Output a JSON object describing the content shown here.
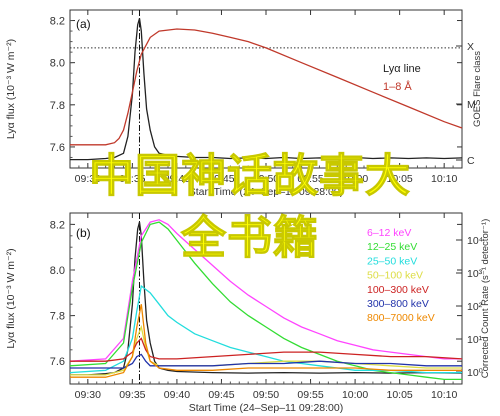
{
  "overlay_text": {
    "line1": "中国神话故事大",
    "line2": "全书籍"
  },
  "colors": {
    "overlay": "#ffff00",
    "flux": "#222222",
    "goes": "#c0392b",
    "axis": "#333333"
  },
  "chart_data": [
    {
      "type": "line",
      "panel_label": "(a)",
      "ylabel": "Lyα flux (10⁻³ W m⁻²)",
      "ylim": [
        7.5,
        8.25
      ],
      "yticks": [
        "7.6",
        "7.8",
        "8.0",
        "8.2"
      ],
      "xlabel": "Start Time (24–Sep–11 09:28:00)",
      "xticks": [
        "09:30",
        "09:35",
        "09:40",
        "09:45",
        "09:50",
        "09:55",
        "10:00",
        "10:05",
        "10:10"
      ],
      "x_domain_min": [
        28.0,
        72.0
      ],
      "right_axis_label": "GOES Flare class",
      "right_ticks": [
        "X",
        "M",
        "C"
      ],
      "reference_line": {
        "style": "dotted",
        "value": 8.07
      },
      "peak_marker_min": 35.8,
      "legend": {
        "position": "top-right",
        "entries": [
          "Lyα line",
          "1–8 Å"
        ]
      },
      "series": [
        {
          "name": "Lyα line",
          "color": "#222222",
          "x": [
            28,
            30,
            32,
            33,
            34,
            34.5,
            35,
            35.3,
            35.6,
            35.8,
            36.0,
            36.3,
            36.6,
            37.0,
            37.5,
            38,
            39,
            40,
            42,
            44,
            46,
            48,
            50,
            52,
            54,
            56,
            58,
            60,
            62,
            64,
            66,
            68,
            70,
            72
          ],
          "y": [
            7.54,
            7.54,
            7.545,
            7.55,
            7.57,
            7.65,
            7.85,
            8.05,
            8.18,
            8.21,
            8.15,
            7.95,
            7.78,
            7.68,
            7.6,
            7.57,
            7.56,
            7.555,
            7.55,
            7.55,
            7.545,
            7.548,
            7.545,
            7.55,
            7.545,
            7.548,
            7.545,
            7.55,
            7.545,
            7.548,
            7.545,
            7.548,
            7.545,
            7.548
          ]
        },
        {
          "name": "1–8 Å",
          "color": "#c0392b",
          "x": [
            28,
            30,
            32,
            33,
            33.5,
            34,
            34.5,
            35,
            35.5,
            36,
            37,
            38,
            40,
            42,
            44,
            46,
            48,
            50,
            54,
            58,
            62,
            66,
            70,
            72
          ],
          "y": [
            7.61,
            7.61,
            7.61,
            7.62,
            7.64,
            7.68,
            7.76,
            7.86,
            7.96,
            8.04,
            8.12,
            8.15,
            8.16,
            8.155,
            8.14,
            8.12,
            8.1,
            8.07,
            8.0,
            7.93,
            7.86,
            7.79,
            7.72,
            7.69
          ]
        }
      ]
    },
    {
      "type": "line",
      "panel_label": "(b)",
      "ylabel": "Lyα flux (10⁻³ W m⁻²)",
      "ylim": [
        7.5,
        8.25
      ],
      "yticks": [
        "7.6",
        "7.8",
        "8.0",
        "8.2"
      ],
      "xlabel": "Start Time (24–Sep–11 09:28:00)",
      "xticks": [
        "09:30",
        "09:35",
        "09:40",
        "09:45",
        "09:50",
        "09:55",
        "10:00",
        "10:05",
        "10:10"
      ],
      "x_domain_min": [
        28.0,
        72.0
      ],
      "right_axis_label": "Corrected Count Rate (s⁻¹ detector⁻¹)",
      "right_ticks": [
        "10⁴",
        "10³",
        "10²",
        "10¹",
        "10⁰"
      ],
      "peak_marker_min": 35.8,
      "legend": {
        "position": "top-right",
        "entries": [
          "6–12 keV",
          "12–25 keV",
          "25–50 keV",
          "50–100 keV",
          "100–300 keV",
          "300–800 keV",
          "800–7000 keV"
        ]
      },
      "series": [
        {
          "name": "Lyα flux",
          "color": "#222222",
          "x": [
            28,
            30,
            32,
            33,
            34,
            34.5,
            35,
            35.3,
            35.6,
            35.8,
            36.0,
            36.3,
            36.6,
            37.0,
            37.5,
            38,
            39,
            40,
            44,
            48,
            52,
            56,
            60,
            64,
            68,
            72
          ],
          "y": [
            7.54,
            7.54,
            7.545,
            7.55,
            7.57,
            7.65,
            7.85,
            8.05,
            8.18,
            8.21,
            8.15,
            7.95,
            7.78,
            7.68,
            7.6,
            7.57,
            7.56,
            7.555,
            7.55,
            7.548,
            7.55,
            7.548,
            7.55,
            7.548,
            7.55,
            7.548
          ]
        },
        {
          "name": "6–12 keV",
          "color": "#ff44ff",
          "x": [
            28,
            32,
            34,
            35,
            36,
            37,
            38,
            39,
            40,
            42,
            44,
            46,
            48,
            50,
            52,
            54,
            56,
            58,
            60,
            62,
            64,
            66,
            68,
            70,
            72
          ],
          "y": [
            7.6,
            7.61,
            7.7,
            7.95,
            8.15,
            8.21,
            8.22,
            8.2,
            8.16,
            8.09,
            8.02,
            7.95,
            7.89,
            7.84,
            7.79,
            7.75,
            7.72,
            7.69,
            7.67,
            7.65,
            7.64,
            7.63,
            7.62,
            7.61,
            7.61
          ]
        },
        {
          "name": "12–25 keV",
          "color": "#33dd33",
          "x": [
            28,
            32,
            34,
            35,
            36,
            37,
            38,
            39,
            40,
            42,
            44,
            46,
            48,
            50,
            52,
            54,
            56,
            58,
            60,
            62,
            64,
            66,
            68,
            70,
            72
          ],
          "y": [
            7.58,
            7.59,
            7.68,
            7.92,
            8.12,
            8.2,
            8.21,
            8.18,
            8.13,
            8.03,
            7.94,
            7.86,
            7.8,
            7.75,
            7.7,
            7.66,
            7.63,
            7.6,
            7.58,
            7.56,
            7.55,
            7.54,
            7.53,
            7.52,
            7.52
          ]
        },
        {
          "name": "25–50 keV",
          "color": "#22dddd",
          "x": [
            28,
            32,
            34,
            35,
            35.5,
            36,
            37,
            38,
            39,
            40,
            42,
            44,
            46,
            48,
            50,
            52,
            54,
            56,
            58,
            60,
            64,
            68,
            72
          ],
          "y": [
            7.55,
            7.56,
            7.6,
            7.7,
            7.82,
            7.93,
            7.9,
            7.85,
            7.8,
            7.77,
            7.72,
            7.69,
            7.66,
            7.64,
            7.62,
            7.6,
            7.59,
            7.58,
            7.57,
            7.56,
            7.56,
            7.55,
            7.55
          ]
        },
        {
          "name": "50–100 keV",
          "color": "#dddd44",
          "x": [
            28,
            32,
            34,
            35,
            35.5,
            36,
            36.5,
            37,
            38,
            40,
            44,
            48,
            52,
            56,
            60,
            64,
            68,
            72
          ],
          "y": [
            7.54,
            7.54,
            7.56,
            7.62,
            7.7,
            7.75,
            7.66,
            7.6,
            7.58,
            7.58,
            7.58,
            7.59,
            7.6,
            7.6,
            7.59,
            7.58,
            7.57,
            7.57
          ]
        },
        {
          "name": "100–300 keV",
          "color": "#cc2222",
          "x": [
            28,
            32,
            34,
            35,
            35.5,
            36,
            36.5,
            37,
            38,
            40,
            44,
            48,
            52,
            56,
            60,
            64,
            68,
            72
          ],
          "y": [
            7.6,
            7.6,
            7.61,
            7.64,
            7.68,
            7.7,
            7.65,
            7.62,
            7.61,
            7.61,
            7.62,
            7.63,
            7.64,
            7.64,
            7.63,
            7.62,
            7.62,
            7.61
          ]
        },
        {
          "name": "300–800 keV",
          "color": "#2233aa",
          "x": [
            28,
            32,
            34,
            35,
            35.5,
            36,
            36.5,
            37,
            38,
            40,
            44,
            48,
            52,
            56,
            60,
            64,
            68,
            72
          ],
          "y": [
            7.57,
            7.57,
            7.57,
            7.59,
            7.62,
            7.63,
            7.6,
            7.58,
            7.58,
            7.58,
            7.58,
            7.59,
            7.59,
            7.6,
            7.59,
            7.59,
            7.58,
            7.58
          ]
        },
        {
          "name": "800–7000 keV",
          "color": "#ee8800",
          "x": [
            28,
            32,
            34,
            35,
            35.5,
            36,
            36.5,
            37,
            38,
            40,
            44,
            48,
            52,
            56,
            60,
            64,
            68,
            72
          ],
          "y": [
            7.53,
            7.53,
            7.55,
            7.62,
            7.75,
            7.85,
            7.68,
            7.6,
            7.57,
            7.56,
            7.56,
            7.57,
            7.57,
            7.57,
            7.57,
            7.56,
            7.56,
            7.56
          ]
        }
      ]
    }
  ]
}
